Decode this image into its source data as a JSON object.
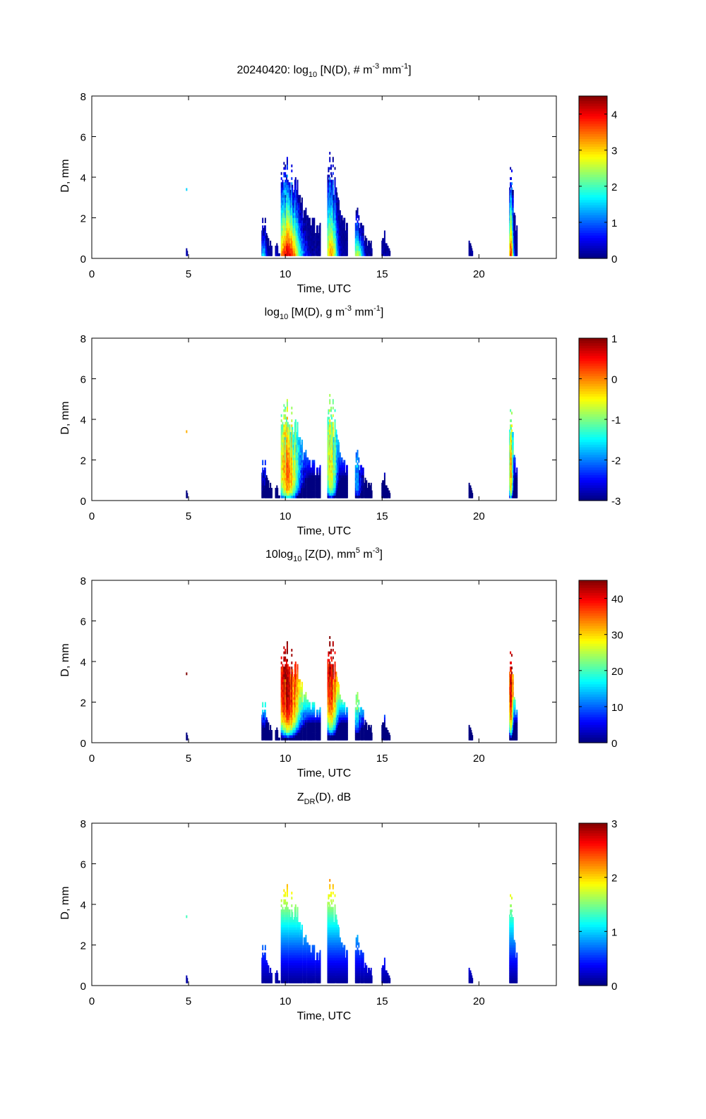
{
  "figure": {
    "date": "20240420"
  },
  "chart_data": [
    {
      "type": "heatmap",
      "title_parts": {
        "pre": "20240420: log",
        "sub": "10",
        "mid": " [N(D), # m",
        "sup1": "-3",
        "mid2": " mm",
        "sup2": "-1",
        "post": "]"
      },
      "title": "20240420: log10 [N(D), # m-3 mm-1]",
      "xlabel": "Time, UTC",
      "ylabel": "D, mm",
      "xlim": [
        0,
        24
      ],
      "ylim": [
        0,
        8
      ],
      "xticks": [
        "0",
        "5",
        "10",
        "15",
        "20"
      ],
      "xtick_values": [
        0,
        5,
        10,
        15,
        20
      ],
      "yticks": [
        "0",
        "2",
        "4",
        "6",
        "8"
      ],
      "ytick_values": [
        0,
        2,
        4,
        6,
        8
      ],
      "colorbar": {
        "range": [
          0,
          4.5
        ],
        "ticks": [
          "0",
          "1",
          "2",
          "3",
          "4"
        ],
        "tick_values": [
          0,
          1,
          2,
          3,
          4
        ],
        "colormap": "jet"
      },
      "field": "N"
    },
    {
      "type": "heatmap",
      "title_parts": {
        "pre": "log",
        "sub": "10",
        "mid": " [M(D), g m",
        "sup1": "-3",
        "mid2": " mm",
        "sup2": "-1",
        "post": "]"
      },
      "title": "log10 [M(D), g m-3 mm-1]",
      "xlabel": "Time, UTC",
      "ylabel": "D, mm",
      "xlim": [
        0,
        24
      ],
      "ylim": [
        0,
        8
      ],
      "xticks": [
        "0",
        "5",
        "10",
        "15",
        "20"
      ],
      "xtick_values": [
        0,
        5,
        10,
        15,
        20
      ],
      "yticks": [
        "0",
        "2",
        "4",
        "6",
        "8"
      ],
      "ytick_values": [
        0,
        2,
        4,
        6,
        8
      ],
      "colorbar": {
        "range": [
          -3,
          1
        ],
        "ticks": [
          "-3",
          "-2",
          "-1",
          "0",
          "1"
        ],
        "tick_values": [
          -3,
          -2,
          -1,
          0,
          1
        ],
        "colormap": "jet"
      },
      "field": "M"
    },
    {
      "type": "heatmap",
      "title_parts": {
        "pre": "10log",
        "sub": "10",
        "mid": " [Z(D),  mm",
        "sup1": "5",
        "mid2": " m",
        "sup2": "-3",
        "post": "]"
      },
      "title": "10log10 [Z(D),  mm5 m-3]",
      "xlabel": "Time, UTC",
      "ylabel": "D, mm",
      "xlim": [
        0,
        24
      ],
      "ylim": [
        0,
        8
      ],
      "xticks": [
        "0",
        "5",
        "10",
        "15",
        "20"
      ],
      "xtick_values": [
        0,
        5,
        10,
        15,
        20
      ],
      "yticks": [
        "0",
        "2",
        "4",
        "6",
        "8"
      ],
      "ytick_values": [
        0,
        2,
        4,
        6,
        8
      ],
      "colorbar": {
        "range": [
          0,
          45
        ],
        "ticks": [
          "0",
          "10",
          "20",
          "30",
          "40"
        ],
        "tick_values": [
          0,
          10,
          20,
          30,
          40
        ],
        "colormap": "jet"
      },
      "field": "Z"
    },
    {
      "type": "heatmap",
      "title_parts": {
        "pre": "Z",
        "sub": "DR",
        "mid": "(D), dB",
        "sup1": "",
        "mid2": "",
        "sup2": "",
        "post": ""
      },
      "title": "ZDR(D), dB",
      "xlabel": "Time, UTC",
      "ylabel": "D, mm",
      "xlim": [
        0,
        24
      ],
      "ylim": [
        0,
        8
      ],
      "xticks": [
        "0",
        "5",
        "10",
        "15",
        "20"
      ],
      "xtick_values": [
        0,
        5,
        10,
        15,
        20
      ],
      "yticks": [
        "0",
        "2",
        "4",
        "6",
        "8"
      ],
      "ytick_values": [
        0,
        2,
        4,
        6,
        8
      ],
      "colorbar": {
        "range": [
          0,
          3
        ],
        "ticks": [
          "0",
          "1",
          "2",
          "3"
        ],
        "tick_values": [
          0,
          1,
          2,
          3
        ],
        "colormap": "jet"
      },
      "field": "ZDR"
    }
  ],
  "events": [
    {
      "t_start": 4.9,
      "t_end": 4.95,
      "dmax": 0.8,
      "peak_logN": 0.8,
      "isolated_high": 3.4
    },
    {
      "t_start": 8.8,
      "t_end": 9.3,
      "dmax": 2.3,
      "peak_logN": 1.8
    },
    {
      "t_start": 9.5,
      "t_end": 9.7,
      "dmax": 1.0,
      "peak_logN": 0.6
    },
    {
      "t_start": 9.8,
      "t_end": 11.8,
      "dmax": 5.4,
      "peak_logN": 4.3
    },
    {
      "t_start": 12.2,
      "t_end": 13.2,
      "dmax": 5.5,
      "peak_logN": 3.5
    },
    {
      "t_start": 13.6,
      "t_end": 14.5,
      "dmax": 2.5,
      "peak_logN": 2.8
    },
    {
      "t_start": 15.0,
      "t_end": 15.4,
      "dmax": 1.6,
      "peak_logN": 0.5
    },
    {
      "t_start": 19.5,
      "t_end": 19.7,
      "dmax": 1.3,
      "peak_logN": 0.4
    },
    {
      "t_start": 21.6,
      "t_end": 22.0,
      "dmax": 4.9,
      "peak_logN": 4.0
    }
  ]
}
